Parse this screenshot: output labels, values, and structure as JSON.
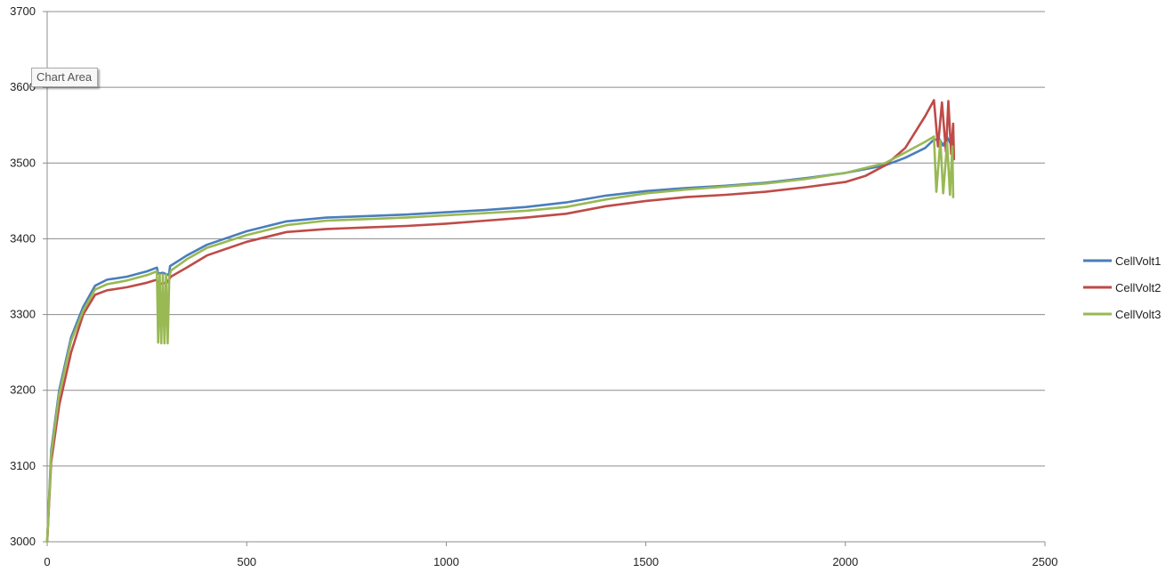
{
  "tooltip": "Chart Area",
  "chart_data": {
    "type": "line",
    "title": "",
    "xlabel": "",
    "ylabel": "",
    "xlim": [
      0,
      2500
    ],
    "ylim": [
      3000,
      3700
    ],
    "x_ticks": [
      0,
      500,
      1000,
      1500,
      2000,
      2500
    ],
    "y_ticks": [
      3000,
      3100,
      3200,
      3300,
      3400,
      3500,
      3600,
      3700
    ],
    "grid": true,
    "legend_position": "right",
    "series": [
      {
        "name": "CellVolt1",
        "color": "#4a7ebb",
        "points": [
          [
            0,
            3000
          ],
          [
            10,
            3120
          ],
          [
            30,
            3200
          ],
          [
            60,
            3270
          ],
          [
            90,
            3310
          ],
          [
            120,
            3338
          ],
          [
            150,
            3346
          ],
          [
            200,
            3350
          ],
          [
            250,
            3357
          ],
          [
            275,
            3362
          ],
          [
            278,
            3354
          ],
          [
            290,
            3355
          ],
          [
            305,
            3352
          ],
          [
            308,
            3364
          ],
          [
            350,
            3378
          ],
          [
            400,
            3392
          ],
          [
            500,
            3410
          ],
          [
            600,
            3423
          ],
          [
            700,
            3428
          ],
          [
            800,
            3430
          ],
          [
            900,
            3432
          ],
          [
            1000,
            3435
          ],
          [
            1100,
            3438
          ],
          [
            1200,
            3442
          ],
          [
            1300,
            3448
          ],
          [
            1400,
            3457
          ],
          [
            1500,
            3463
          ],
          [
            1600,
            3467
          ],
          [
            1700,
            3470
          ],
          [
            1800,
            3474
          ],
          [
            1900,
            3480
          ],
          [
            2000,
            3487
          ],
          [
            2100,
            3497
          ],
          [
            2150,
            3507
          ],
          [
            2200,
            3520
          ],
          [
            2220,
            3530
          ],
          [
            2235,
            3532
          ],
          [
            2245,
            3523
          ],
          [
            2255,
            3534
          ],
          [
            2262,
            3527
          ],
          [
            2268,
            3524
          ]
        ]
      },
      {
        "name": "CellVolt2",
        "color": "#be4b48",
        "points": [
          [
            0,
            3000
          ],
          [
            10,
            3105
          ],
          [
            30,
            3180
          ],
          [
            60,
            3250
          ],
          [
            90,
            3300
          ],
          [
            120,
            3326
          ],
          [
            150,
            3332
          ],
          [
            200,
            3336
          ],
          [
            250,
            3342
          ],
          [
            275,
            3346
          ],
          [
            278,
            3340
          ],
          [
            300,
            3342
          ],
          [
            310,
            3350
          ],
          [
            350,
            3362
          ],
          [
            400,
            3378
          ],
          [
            500,
            3396
          ],
          [
            600,
            3409
          ],
          [
            700,
            3413
          ],
          [
            800,
            3415
          ],
          [
            900,
            3417
          ],
          [
            1000,
            3420
          ],
          [
            1100,
            3424
          ],
          [
            1200,
            3428
          ],
          [
            1300,
            3433
          ],
          [
            1400,
            3443
          ],
          [
            1500,
            3450
          ],
          [
            1600,
            3455
          ],
          [
            1700,
            3458
          ],
          [
            1800,
            3462
          ],
          [
            1900,
            3468
          ],
          [
            2000,
            3475
          ],
          [
            2050,
            3483
          ],
          [
            2100,
            3497
          ],
          [
            2150,
            3520
          ],
          [
            2200,
            3562
          ],
          [
            2222,
            3583
          ],
          [
            2232,
            3522
          ],
          [
            2242,
            3580
          ],
          [
            2252,
            3515
          ],
          [
            2258,
            3582
          ],
          [
            2265,
            3512
          ],
          [
            2270,
            3552
          ],
          [
            2272,
            3505
          ]
        ]
      },
      {
        "name": "CellVolt3",
        "color": "#98b954",
        "points": [
          [
            0,
            3000
          ],
          [
            10,
            3115
          ],
          [
            30,
            3195
          ],
          [
            60,
            3265
          ],
          [
            90,
            3305
          ],
          [
            120,
            3333
          ],
          [
            150,
            3340
          ],
          [
            200,
            3345
          ],
          [
            250,
            3352
          ],
          [
            275,
            3357
          ],
          [
            278,
            3263
          ],
          [
            282,
            3353
          ],
          [
            286,
            3262
          ],
          [
            290,
            3353
          ],
          [
            294,
            3262
          ],
          [
            298,
            3353
          ],
          [
            302,
            3262
          ],
          [
            306,
            3350
          ],
          [
            310,
            3358
          ],
          [
            350,
            3373
          ],
          [
            400,
            3388
          ],
          [
            500,
            3405
          ],
          [
            600,
            3418
          ],
          [
            700,
            3424
          ],
          [
            800,
            3426
          ],
          [
            900,
            3428
          ],
          [
            1000,
            3431
          ],
          [
            1100,
            3434
          ],
          [
            1200,
            3437
          ],
          [
            1300,
            3442
          ],
          [
            1400,
            3452
          ],
          [
            1500,
            3460
          ],
          [
            1600,
            3465
          ],
          [
            1700,
            3469
          ],
          [
            1800,
            3473
          ],
          [
            1900,
            3479
          ],
          [
            2000,
            3487
          ],
          [
            2100,
            3500
          ],
          [
            2150,
            3514
          ],
          [
            2200,
            3528
          ],
          [
            2222,
            3535
          ],
          [
            2228,
            3462
          ],
          [
            2238,
            3530
          ],
          [
            2245,
            3460
          ],
          [
            2255,
            3527
          ],
          [
            2262,
            3458
          ],
          [
            2268,
            3522
          ],
          [
            2270,
            3455
          ]
        ]
      }
    ]
  }
}
